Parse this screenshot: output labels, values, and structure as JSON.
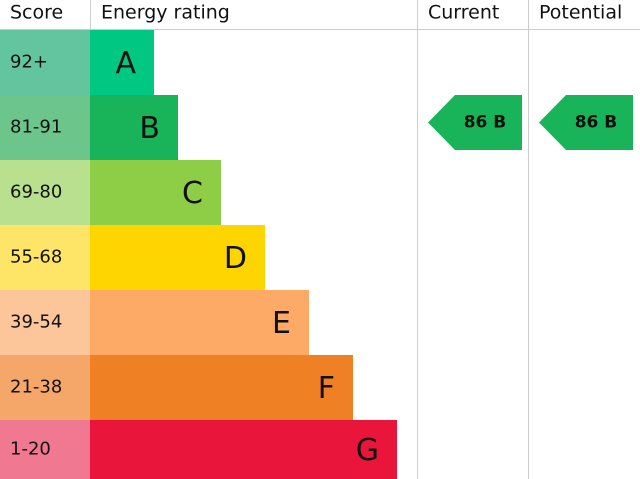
{
  "header": {
    "score": "Score",
    "rating": "Energy rating",
    "current": "Current",
    "potential": "Potential"
  },
  "bands": [
    {
      "score": "92+",
      "letter": "A",
      "color": "#00c781",
      "light": "#63c5a0"
    },
    {
      "score": "81-91",
      "letter": "B",
      "color": "#19b459",
      "light": "#6cc58a"
    },
    {
      "score": "69-80",
      "letter": "C",
      "color": "#8dce46",
      "light": "#b8e08f"
    },
    {
      "score": "55-68",
      "letter": "D",
      "color": "#ffd500",
      "light": "#ffe567"
    },
    {
      "score": "39-54",
      "letter": "E",
      "color": "#fcaa65",
      "light": "#fdc59a"
    },
    {
      "score": "21-38",
      "letter": "F",
      "color": "#ef8023",
      "light": "#f5a76a"
    },
    {
      "score": "1-20",
      "letter": "G",
      "color": "#e9153b",
      "light": "#f07890"
    }
  ],
  "current": {
    "label": "86 B",
    "color": "#19b459"
  },
  "potential": {
    "label": "86 B",
    "color": "#19b459"
  }
}
